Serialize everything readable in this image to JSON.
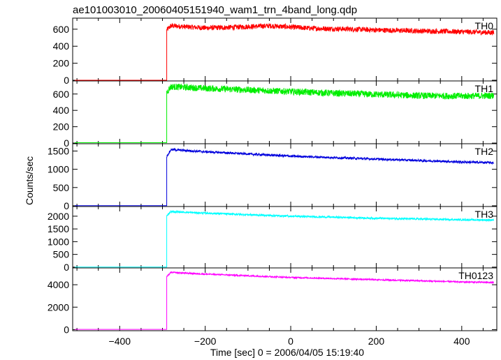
{
  "chart_data": {
    "type": "line",
    "title": "ae101003010_20060405151940_wam1_trn_4band_long.qdp",
    "xlabel": "Time [sec] 0 = 2006/04/05 15:19:40",
    "ylabel": "Counts/sec",
    "xlim": [
      -510,
      482
    ],
    "x_ticks": [
      -400,
      -200,
      0,
      200,
      400
    ],
    "x_tick_labels": [
      "−400",
      "−200",
      "0",
      "200",
      "400"
    ],
    "grid": false,
    "panels": [
      {
        "name": "TH0",
        "color": "#ff0000",
        "ylim": [
          -8,
          730
        ],
        "y_ticks": [
          0,
          200,
          400,
          600
        ],
        "baseline": 0,
        "rise_time": -290,
        "data_end": 475,
        "points": [
          [
            -290,
            590
          ],
          [
            -280,
            640
          ],
          [
            -250,
            630
          ],
          [
            -200,
            615
          ],
          [
            -150,
            620
          ],
          [
            -100,
            630
          ],
          [
            -50,
            640
          ],
          [
            0,
            625
          ],
          [
            50,
            610
          ],
          [
            100,
            605
          ],
          [
            150,
            600
          ],
          [
            200,
            590
          ],
          [
            250,
            585
          ],
          [
            300,
            580
          ],
          [
            350,
            575
          ],
          [
            400,
            570
          ],
          [
            475,
            560
          ]
        ],
        "noise": 30
      },
      {
        "name": "TH1",
        "color": "#00ee00",
        "ylim": [
          -8,
          760
        ],
        "y_ticks": [
          0,
          200,
          400,
          600
        ],
        "baseline": 5,
        "rise_time": -290,
        "data_end": 475,
        "points": [
          [
            -290,
            620
          ],
          [
            -280,
            690
          ],
          [
            -200,
            670
          ],
          [
            -100,
            650
          ],
          [
            0,
            630
          ],
          [
            100,
            610
          ],
          [
            200,
            595
          ],
          [
            300,
            580
          ],
          [
            400,
            575
          ],
          [
            475,
            580
          ]
        ],
        "noise": 40
      },
      {
        "name": "TH2",
        "color": "#0000dd",
        "ylim": [
          -20,
          1700
        ],
        "y_ticks": [
          0,
          500,
          1000,
          1500
        ],
        "baseline": 5,
        "rise_time": -290,
        "data_end": 475,
        "points": [
          [
            -290,
            1350
          ],
          [
            -280,
            1540
          ],
          [
            -200,
            1480
          ],
          [
            -100,
            1420
          ],
          [
            0,
            1360
          ],
          [
            100,
            1320
          ],
          [
            200,
            1280
          ],
          [
            300,
            1240
          ],
          [
            400,
            1200
          ],
          [
            475,
            1180
          ]
        ],
        "noise": 30
      },
      {
        "name": "TH3",
        "color": "#00ffff",
        "ylim": [
          -30,
          2380
        ],
        "y_ticks": [
          0,
          500,
          1000,
          1500,
          2000
        ],
        "baseline": 5,
        "rise_time": -290,
        "data_end": 475,
        "points": [
          [
            -290,
            2000
          ],
          [
            -280,
            2180
          ],
          [
            -200,
            2120
          ],
          [
            -100,
            2060
          ],
          [
            0,
            2000
          ],
          [
            100,
            1960
          ],
          [
            200,
            1920
          ],
          [
            300,
            1890
          ],
          [
            400,
            1860
          ],
          [
            475,
            1850
          ]
        ],
        "noise": 35
      },
      {
        "name": "TH0123",
        "color": "#ff00ff",
        "ylim": [
          -100,
          5500
        ],
        "y_ticks": [
          0,
          2000,
          4000
        ],
        "baseline": 20,
        "rise_time": -290,
        "data_end": 475,
        "points": [
          [
            -290,
            4700
          ],
          [
            -280,
            5100
          ],
          [
            -200,
            4950
          ],
          [
            -100,
            4800
          ],
          [
            0,
            4650
          ],
          [
            100,
            4550
          ],
          [
            200,
            4450
          ],
          [
            300,
            4350
          ],
          [
            400,
            4250
          ],
          [
            475,
            4200
          ]
        ],
        "noise": 60
      }
    ]
  }
}
